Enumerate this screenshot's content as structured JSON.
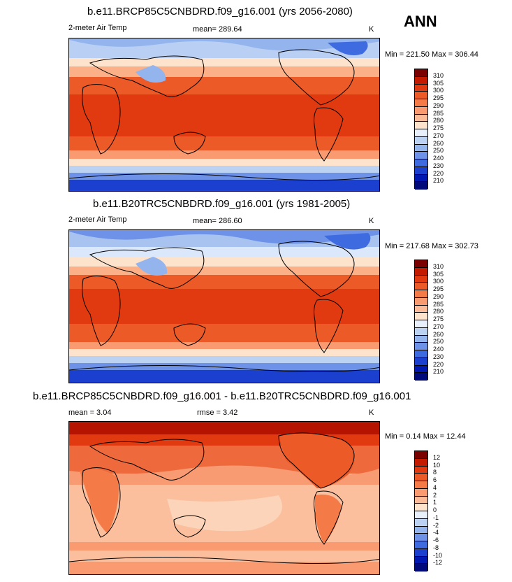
{
  "season": "ANN",
  "panels": [
    {
      "title": "b.e11.BRCP85C5CNBDRD.f09_g16.001 (yrs 2056-2080)",
      "variable": "2-meter Air Temp",
      "stat_left": "",
      "mean": "mean= 289.64",
      "units": "K",
      "minmax": "Min = 221.50 Max = 306.44",
      "colorbar": {
        "labels": [
          "310",
          "305",
          "300",
          "295",
          "290",
          "285",
          "280",
          "275",
          "270",
          "260",
          "250",
          "240",
          "230",
          "220",
          "210"
        ],
        "colors": [
          "#7b0000",
          "#c41a00",
          "#e23a10",
          "#ec5a28",
          "#f47a48",
          "#f99a70",
          "#fcbb98",
          "#fde2cc",
          "#e8f0fb",
          "#bcd2f3",
          "#94b4ee",
          "#6d92e8",
          "#3f6be0",
          "#1b40d0",
          "#0018b0",
          "#000a7a"
        ]
      }
    },
    {
      "title": "b.e11.B20TRC5CNBDRD.f09_g16.001 (yrs 1981-2005)",
      "variable": "2-meter Air Temp",
      "stat_left": "",
      "mean": "mean= 286.60",
      "units": "K",
      "minmax": "Min = 217.68 Max = 302.73",
      "colorbar": {
        "labels": [
          "310",
          "305",
          "300",
          "295",
          "290",
          "285",
          "280",
          "275",
          "270",
          "260",
          "250",
          "240",
          "230",
          "220",
          "210"
        ],
        "colors": [
          "#7b0000",
          "#c41a00",
          "#e23a10",
          "#ec5a28",
          "#f47a48",
          "#f99a70",
          "#fcbb98",
          "#fde2cc",
          "#e8f0fb",
          "#bcd2f3",
          "#94b4ee",
          "#6d92e8",
          "#3f6be0",
          "#1b40d0",
          "#0018b0",
          "#000a7a"
        ]
      }
    },
    {
      "title": "b.e11.BRCP85C5CNBDRD.f09_g16.001 - b.e11.B20TRC5CNBDRD.f09_g16.001",
      "variable": "mean =   3.04",
      "stat_left": "",
      "mean": "rmse =   3.42",
      "units": "K",
      "minmax": "Min =  0.14 Max =  12.44",
      "colorbar": {
        "labels": [
          "12",
          "10",
          "8",
          "6",
          "4",
          "2",
          "1",
          "0",
          "-1",
          "-2",
          "-4",
          "-6",
          "-8",
          "-10",
          "-12"
        ],
        "colors": [
          "#7b0000",
          "#c41a00",
          "#e23a10",
          "#ec5a28",
          "#f47a48",
          "#f99a70",
          "#fcbb98",
          "#fde2cc",
          "#e8f0fb",
          "#bcd2f3",
          "#94b4ee",
          "#6d92e8",
          "#3f6be0",
          "#1b40d0",
          "#0018b0",
          "#000a7a"
        ]
      }
    }
  ],
  "colors": {
    "ocean_hot": "#e4521c",
    "ocean_warm": "#f07040",
    "mid": "#fbb088",
    "cool": "#fde2cc",
    "pale_blue": "#c6d8f5",
    "blue": "#7a9cea",
    "deep_blue": "#2a52d8",
    "diff_base": "#fbbf9e",
    "diff_mid": "#f89a72",
    "diff_high": "#ee6a3c",
    "diff_max": "#b41400"
  }
}
